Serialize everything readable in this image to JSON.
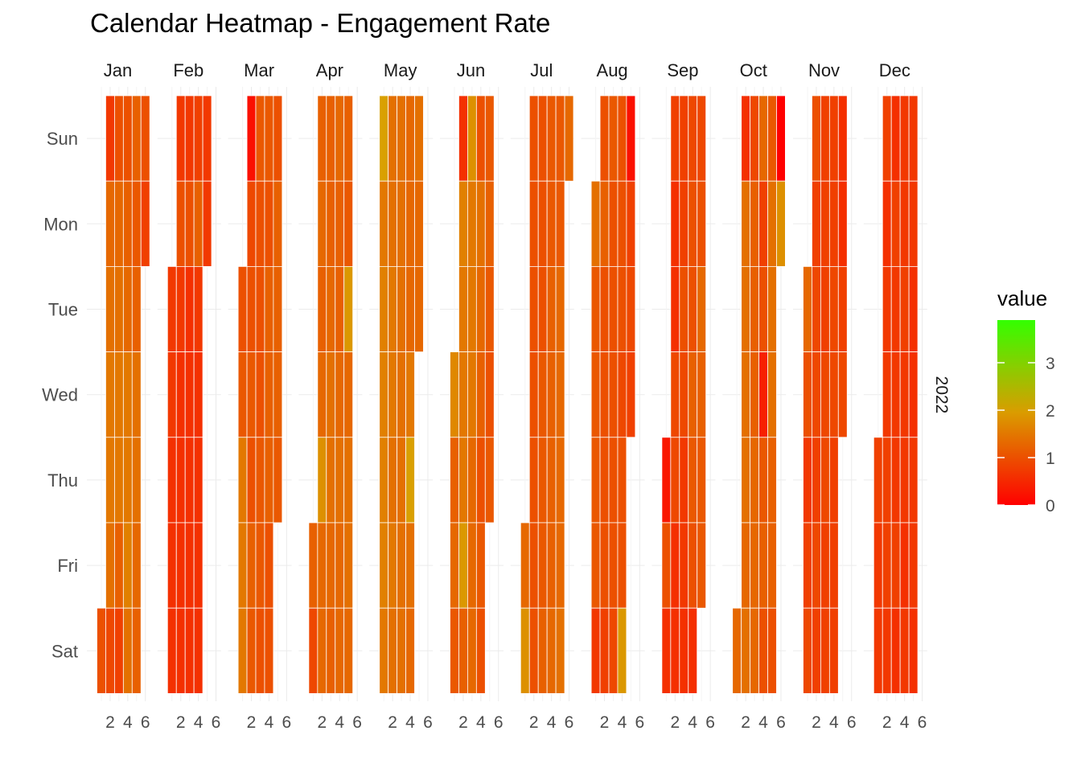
{
  "chart_data": {
    "type": "heatmap",
    "title": "Calendar Heatmap - Engagement Rate",
    "year": "2022",
    "legend": {
      "title": "value",
      "position": "right",
      "ticks": [
        0,
        1,
        2,
        3
      ],
      "range": [
        0,
        3.9
      ],
      "colors": {
        "low": "#ff0000",
        "mid": "#d9a000",
        "high": "#33ff00"
      }
    },
    "x_tick_labels": [
      "2",
      "4",
      "6"
    ],
    "weekdays": [
      "Sun",
      "Mon",
      "Tue",
      "Wed",
      "Thu",
      "Fri",
      "Sat"
    ],
    "months": [
      {
        "name": "Jan",
        "start_weekday": 6,
        "values": [
          1.0,
          0.7,
          1.3,
          1.4,
          1.5,
          1.5,
          1.4,
          0.9,
          1.0,
          1.3,
          1.4,
          1.5,
          1.5,
          1.2,
          0.8,
          1.0,
          1.2,
          1.3,
          1.5,
          1.5,
          1.6,
          1.4,
          1.2,
          1.1,
          1.2,
          1.4,
          1.4,
          1.3,
          1.2,
          1.0,
          0.8
        ]
      },
      {
        "name": "Feb",
        "start_weekday": 2,
        "values": [
          0.7,
          0.7,
          0.6,
          0.6,
          0.6,
          0.7,
          1.0,
          0.7,
          0.6,
          0.6,
          0.6,
          0.6,
          0.7,
          1.0,
          0.6,
          0.6,
          0.6,
          0.6,
          0.6,
          0.8,
          1.2,
          0.7,
          0.6,
          0.6,
          0.6,
          0.6,
          0.7,
          0.7
        ]
      },
      {
        "name": "Mar",
        "start_weekday": 2,
        "values": [
          1.0,
          1.1,
          1.5,
          1.5,
          1.5,
          0.2,
          0.9,
          1.0,
          1.1,
          1.0,
          1.2,
          1.1,
          1.1,
          1.0,
          1.0,
          1.0,
          1.1,
          1.1,
          1.0,
          1.1,
          1.0,
          1.2,
          1.2,
          1.2,
          1.0,
          1.0,
          1.0,
          1.2,
          1.2,
          1.2,
          1.1
        ]
      },
      {
        "name": "Apr",
        "start_weekday": 5,
        "values": [
          1.2,
          0.9,
          1.2,
          1.3,
          1.2,
          1.3,
          1.8,
          1.3,
          1.3,
          1.2,
          1.2,
          1.3,
          1.4,
          1.4,
          1.3,
          1.2,
          1.3,
          1.2,
          1.2,
          1.3,
          1.4,
          1.3,
          1.3,
          1.2,
          1.1,
          1.9,
          1.3,
          1.4,
          1.4,
          1.3
        ]
      },
      {
        "name": "May",
        "start_weekday": 0,
        "values": [
          2.0,
          1.5,
          1.6,
          1.6,
          1.6,
          1.6,
          1.5,
          1.4,
          1.4,
          1.5,
          1.5,
          1.4,
          1.5,
          1.4,
          1.4,
          1.4,
          1.4,
          1.4,
          1.4,
          1.4,
          1.4,
          1.3,
          1.3,
          1.3,
          1.5,
          2.0,
          1.4,
          1.3,
          1.4,
          1.3,
          1.3
        ]
      },
      {
        "name": "Jun",
        "start_weekday": 3,
        "values": [
          1.7,
          1.2,
          1.3,
          1.1,
          0.6,
          1.6,
          1.5,
          1.5,
          1.5,
          1.9,
          1.2,
          1.8,
          1.5,
          1.5,
          1.5,
          1.3,
          1.3,
          1.3,
          1.0,
          1.4,
          1.3,
          1.2,
          1.0,
          1.1,
          1.0,
          1.1,
          1.2,
          1.1,
          1.0,
          1.1
        ]
      },
      {
        "name": "Jul",
        "start_weekday": 5,
        "values": [
          1.3,
          1.8,
          1.0,
          1.0,
          1.0,
          1.0,
          1.0,
          1.0,
          1.0,
          1.0,
          1.0,
          1.0,
          1.1,
          1.1,
          1.1,
          1.2,
          1.1,
          1.1,
          1.2,
          1.2,
          1.2,
          1.2,
          1.3,
          1.1,
          1.1,
          1.3,
          1.3,
          1.3,
          1.3,
          1.4,
          1.3
        ]
      },
      {
        "name": "Aug",
        "start_weekday": 1,
        "values": [
          1.4,
          1.1,
          1.1,
          1.1,
          1.1,
          0.7,
          1.0,
          1.2,
          1.0,
          1.0,
          1.0,
          1.0,
          0.8,
          1.1,
          1.0,
          1.0,
          1.0,
          1.0,
          1.0,
          0.9,
          1.0,
          1.0,
          1.0,
          0.9,
          1.0,
          1.0,
          1.9,
          0.2,
          0.8,
          0.9,
          0.8
        ]
      },
      {
        "name": "Sep",
        "start_weekday": 4,
        "values": [
          0.3,
          1.0,
          0.6,
          0.8,
          0.6,
          0.6,
          0.9,
          0.9,
          0.6,
          0.6,
          0.8,
          0.8,
          1.0,
          0.9,
          0.7,
          0.7,
          0.6,
          0.9,
          1.0,
          1.0,
          1.2,
          1.1,
          1.0,
          0.6,
          0.9,
          1.0,
          1.3,
          1.2,
          1.1,
          1.1
        ]
      },
      {
        "name": "Oct",
        "start_weekday": 6,
        "values": [
          1.3,
          0.6,
          1.4,
          1.4,
          1.4,
          1.4,
          1.3,
          1.4,
          0.9,
          1.2,
          1.2,
          1.2,
          1.3,
          1.3,
          1.3,
          1.3,
          0.8,
          1.0,
          0.4,
          1.1,
          1.2,
          1.0,
          1.1,
          1.4,
          1.4,
          1.4,
          1.2,
          1.2,
          1.0,
          0.0,
          1.8
        ]
      },
      {
        "name": "Nov",
        "start_weekday": 2,
        "values": [
          1.3,
          1.0,
          0.7,
          0.8,
          0.9,
          1.0,
          0.8,
          0.9,
          0.9,
          0.8,
          0.9,
          0.8,
          0.8,
          0.8,
          0.8,
          0.9,
          0.9,
          0.8,
          0.8,
          0.8,
          0.8,
          0.9,
          0.9,
          0.8,
          0.8,
          0.8,
          0.6,
          0.6,
          0.8,
          0.9
        ]
      },
      {
        "name": "Dec",
        "start_weekday": 4,
        "values": [
          0.8,
          0.7,
          0.7,
          0.8,
          0.6,
          0.7,
          0.7,
          0.8,
          0.8,
          0.7,
          0.6,
          0.8,
          0.7,
          0.7,
          0.7,
          0.8,
          0.6,
          0.7,
          0.7,
          0.8,
          0.7,
          0.7,
          0.6,
          0.7,
          0.7,
          0.7,
          0.6,
          0.6,
          0.7,
          0.7,
          0.6
        ]
      }
    ]
  }
}
